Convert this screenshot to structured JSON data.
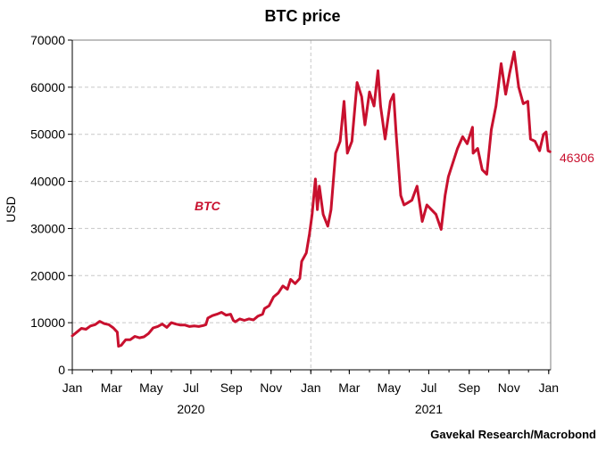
{
  "colors": {
    "series": "#c8102e",
    "grid": "#c8c8c8",
    "axis": "#000000"
  },
  "chart_data": {
    "type": "line",
    "title": "BTC price",
    "ylabel": "USD",
    "xlabel": "",
    "ylim": [
      0,
      70000
    ],
    "yticks": [
      0,
      10000,
      20000,
      30000,
      40000,
      50000,
      60000,
      70000
    ],
    "xlim": [
      "2020-01-01",
      "2022-01-04"
    ],
    "xticks": [
      {
        "date": "2020-01-01",
        "label": "Jan"
      },
      {
        "date": "2020-03-01",
        "label": "Mar"
      },
      {
        "date": "2020-05-01",
        "label": "May"
      },
      {
        "date": "2020-07-01",
        "label": "Jul"
      },
      {
        "date": "2020-09-01",
        "label": "Sep"
      },
      {
        "date": "2020-11-01",
        "label": "Nov"
      },
      {
        "date": "2021-01-01",
        "label": "Jan"
      },
      {
        "date": "2021-03-01",
        "label": "Mar"
      },
      {
        "date": "2021-05-01",
        "label": "May"
      },
      {
        "date": "2021-07-01",
        "label": "Jul"
      },
      {
        "date": "2021-09-01",
        "label": "Sep"
      },
      {
        "date": "2021-11-01",
        "label": "Nov"
      },
      {
        "date": "2022-01-01",
        "label": "Jan"
      }
    ],
    "year_labels": [
      {
        "date": "2020-07-01",
        "label": "2020"
      },
      {
        "date": "2021-07-01",
        "label": "2021"
      }
    ],
    "year_separator": "2021-01-01",
    "grid": true,
    "series": [
      {
        "name": "BTC",
        "color": "#c8102e",
        "end_value_label": "46306",
        "points": [
          [
            "2020-01-01",
            7200
          ],
          [
            "2020-01-08",
            8000
          ],
          [
            "2020-01-15",
            8800
          ],
          [
            "2020-01-22",
            8600
          ],
          [
            "2020-01-29",
            9300
          ],
          [
            "2020-02-05",
            9600
          ],
          [
            "2020-02-12",
            10300
          ],
          [
            "2020-02-19",
            9800
          ],
          [
            "2020-02-26",
            9600
          ],
          [
            "2020-03-04",
            8900
          ],
          [
            "2020-03-10",
            8000
          ],
          [
            "2020-03-12",
            5000
          ],
          [
            "2020-03-16",
            5200
          ],
          [
            "2020-03-23",
            6400
          ],
          [
            "2020-03-30",
            6400
          ],
          [
            "2020-04-06",
            7100
          ],
          [
            "2020-04-13",
            6800
          ],
          [
            "2020-04-20",
            7000
          ],
          [
            "2020-04-27",
            7700
          ],
          [
            "2020-05-04",
            8900
          ],
          [
            "2020-05-11",
            9200
          ],
          [
            "2020-05-18",
            9700
          ],
          [
            "2020-05-25",
            9000
          ],
          [
            "2020-06-01",
            10000
          ],
          [
            "2020-06-08",
            9700
          ],
          [
            "2020-06-15",
            9500
          ],
          [
            "2020-06-22",
            9500
          ],
          [
            "2020-06-29",
            9200
          ],
          [
            "2020-07-06",
            9300
          ],
          [
            "2020-07-13",
            9200
          ],
          [
            "2020-07-20",
            9400
          ],
          [
            "2020-07-24",
            9600
          ],
          [
            "2020-07-27",
            11000
          ],
          [
            "2020-08-03",
            11500
          ],
          [
            "2020-08-10",
            11800
          ],
          [
            "2020-08-17",
            12200
          ],
          [
            "2020-08-24",
            11600
          ],
          [
            "2020-08-31",
            11800
          ],
          [
            "2020-09-04",
            10500
          ],
          [
            "2020-09-07",
            10200
          ],
          [
            "2020-09-14",
            10800
          ],
          [
            "2020-09-21",
            10500
          ],
          [
            "2020-09-28",
            10800
          ],
          [
            "2020-10-05",
            10600
          ],
          [
            "2020-10-12",
            11400
          ],
          [
            "2020-10-19",
            11800
          ],
          [
            "2020-10-22",
            13000
          ],
          [
            "2020-10-29",
            13600
          ],
          [
            "2020-11-05",
            15500
          ],
          [
            "2020-11-12",
            16300
          ],
          [
            "2020-11-19",
            17800
          ],
          [
            "2020-11-26",
            17100
          ],
          [
            "2020-12-01",
            19200
          ],
          [
            "2020-12-08",
            18300
          ],
          [
            "2020-12-15",
            19400
          ],
          [
            "2020-12-18",
            23000
          ],
          [
            "2020-12-25",
            24800
          ],
          [
            "2020-12-30",
            28900
          ],
          [
            "2021-01-03",
            33000
          ],
          [
            "2021-01-08",
            40500
          ],
          [
            "2021-01-11",
            34000
          ],
          [
            "2021-01-14",
            39000
          ],
          [
            "2021-01-20",
            33000
          ],
          [
            "2021-01-27",
            30500
          ],
          [
            "2021-02-01",
            34000
          ],
          [
            "2021-02-08",
            46000
          ],
          [
            "2021-02-15",
            48500
          ],
          [
            "2021-02-21",
            57000
          ],
          [
            "2021-02-26",
            46000
          ],
          [
            "2021-03-05",
            48500
          ],
          [
            "2021-03-13",
            61000
          ],
          [
            "2021-03-20",
            58000
          ],
          [
            "2021-03-25",
            52000
          ],
          [
            "2021-04-01",
            59000
          ],
          [
            "2021-04-08",
            56000
          ],
          [
            "2021-04-14",
            63500
          ],
          [
            "2021-04-18",
            56000
          ],
          [
            "2021-04-25",
            49000
          ],
          [
            "2021-05-03",
            57000
          ],
          [
            "2021-05-08",
            58500
          ],
          [
            "2021-05-12",
            50000
          ],
          [
            "2021-05-19",
            37000
          ],
          [
            "2021-05-24",
            35000
          ],
          [
            "2021-05-30",
            35500
          ],
          [
            "2021-06-05",
            36000
          ],
          [
            "2021-06-13",
            39000
          ],
          [
            "2021-06-21",
            31500
          ],
          [
            "2021-06-28",
            35000
          ],
          [
            "2021-07-05",
            34000
          ],
          [
            "2021-07-12",
            33000
          ],
          [
            "2021-07-20",
            29800
          ],
          [
            "2021-07-26",
            37000
          ],
          [
            "2021-07-31",
            41000
          ],
          [
            "2021-08-07",
            44000
          ],
          [
            "2021-08-14",
            47000
          ],
          [
            "2021-08-22",
            49500
          ],
          [
            "2021-08-29",
            48000
          ],
          [
            "2021-09-06",
            51500
          ],
          [
            "2021-09-07",
            46000
          ],
          [
            "2021-09-14",
            47000
          ],
          [
            "2021-09-21",
            42500
          ],
          [
            "2021-09-28",
            41500
          ],
          [
            "2021-10-05",
            51000
          ],
          [
            "2021-10-12",
            56000
          ],
          [
            "2021-10-20",
            65000
          ],
          [
            "2021-10-27",
            58500
          ],
          [
            "2021-11-02",
            63000
          ],
          [
            "2021-11-09",
            67500
          ],
          [
            "2021-11-16",
            60000
          ],
          [
            "2021-11-23",
            56500
          ],
          [
            "2021-11-30",
            57000
          ],
          [
            "2021-12-04",
            49000
          ],
          [
            "2021-12-11",
            48500
          ],
          [
            "2021-12-18",
            46500
          ],
          [
            "2021-12-24",
            50000
          ],
          [
            "2021-12-28",
            50500
          ],
          [
            "2021-12-31",
            46500
          ],
          [
            "2022-01-03",
            46306
          ]
        ]
      }
    ]
  },
  "source_text": "Gavekal Research/Macrobond"
}
